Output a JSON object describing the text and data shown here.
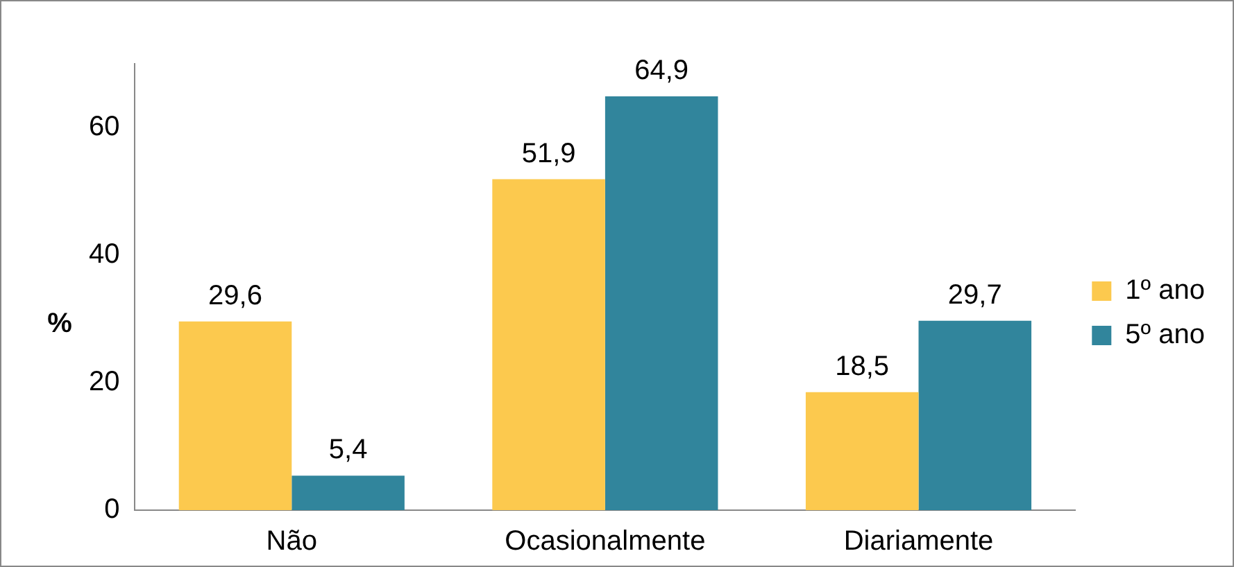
{
  "chart_data": {
    "type": "bar",
    "ylabel": "%",
    "categories": [
      "Não",
      "Ocasionalmente",
      "Diariamente"
    ],
    "series": [
      {
        "name": "1º ano",
        "color": "#fcc94e",
        "values": [
          29.6,
          51.9,
          18.5
        ],
        "value_labels": [
          "29,6",
          "51,9",
          "18,5"
        ]
      },
      {
        "name": "5º ano",
        "color": "#31859c",
        "values": [
          5.4,
          64.9,
          29.7
        ],
        "value_labels": [
          "5,4",
          "64,9",
          "29,7"
        ]
      }
    ],
    "ylim": [
      0,
      70
    ],
    "yticks": [
      0,
      20,
      40,
      60
    ],
    "grid": false,
    "legend": "right"
  }
}
